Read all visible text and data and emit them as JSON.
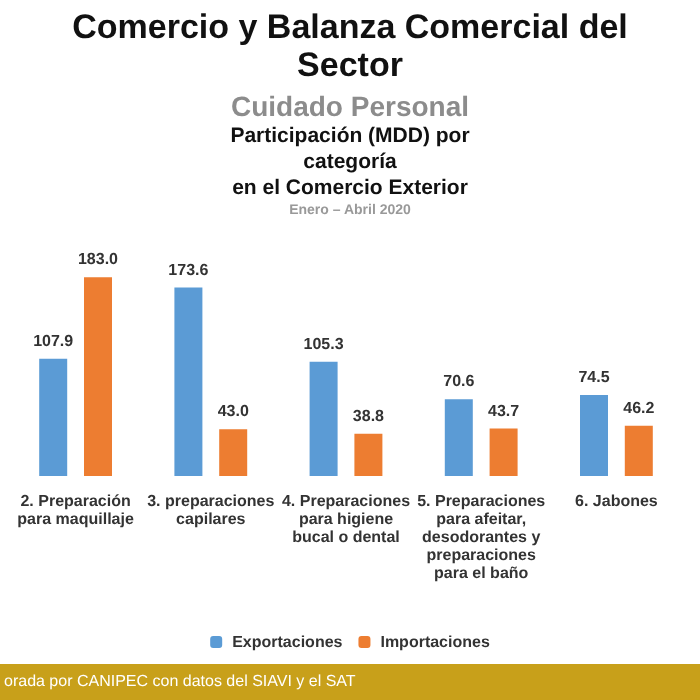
{
  "chart_data": {
    "type": "bar",
    "title": "Comercio y Balanza Comercial del Sector",
    "subtitle": "Cuidado Personal\nParticipación (MDD) por\ncategoría\nen el Comercio Exterior\nEnero – Abril 2020",
    "categories": [
      "2. Preparación\npara maquillaje",
      "3. preparaciones\ncapilares",
      "4. Preparaciones\npara higiene\nbucal o dental",
      "5. Preparaciones\npara afeitar,\ndesodorantes y\npreparaciones\npara el baño",
      "6. Jabones"
    ],
    "series": [
      {
        "name": "Exportaciones",
        "color": "#5b9bd5",
        "values": [
          107.9,
          173.6,
          105.3,
          70.6,
          74.5
        ],
        "value_labels": [
          "107.9",
          "173.6",
          "105.3",
          "70.6",
          "74.5"
        ]
      },
      {
        "name": "Importaciones",
        "color": "#ed7d31",
        "values": [
          183.0,
          43.0,
          38.8,
          43.7,
          46.2
        ],
        "value_labels": [
          "183.0",
          "43.0",
          "38.8",
          "43.7",
          "46.2"
        ]
      }
    ],
    "legend": "bottom",
    "annotations": [
      "orada por CANIPEC con datos del SIAVI y el SAT"
    ]
  }
}
